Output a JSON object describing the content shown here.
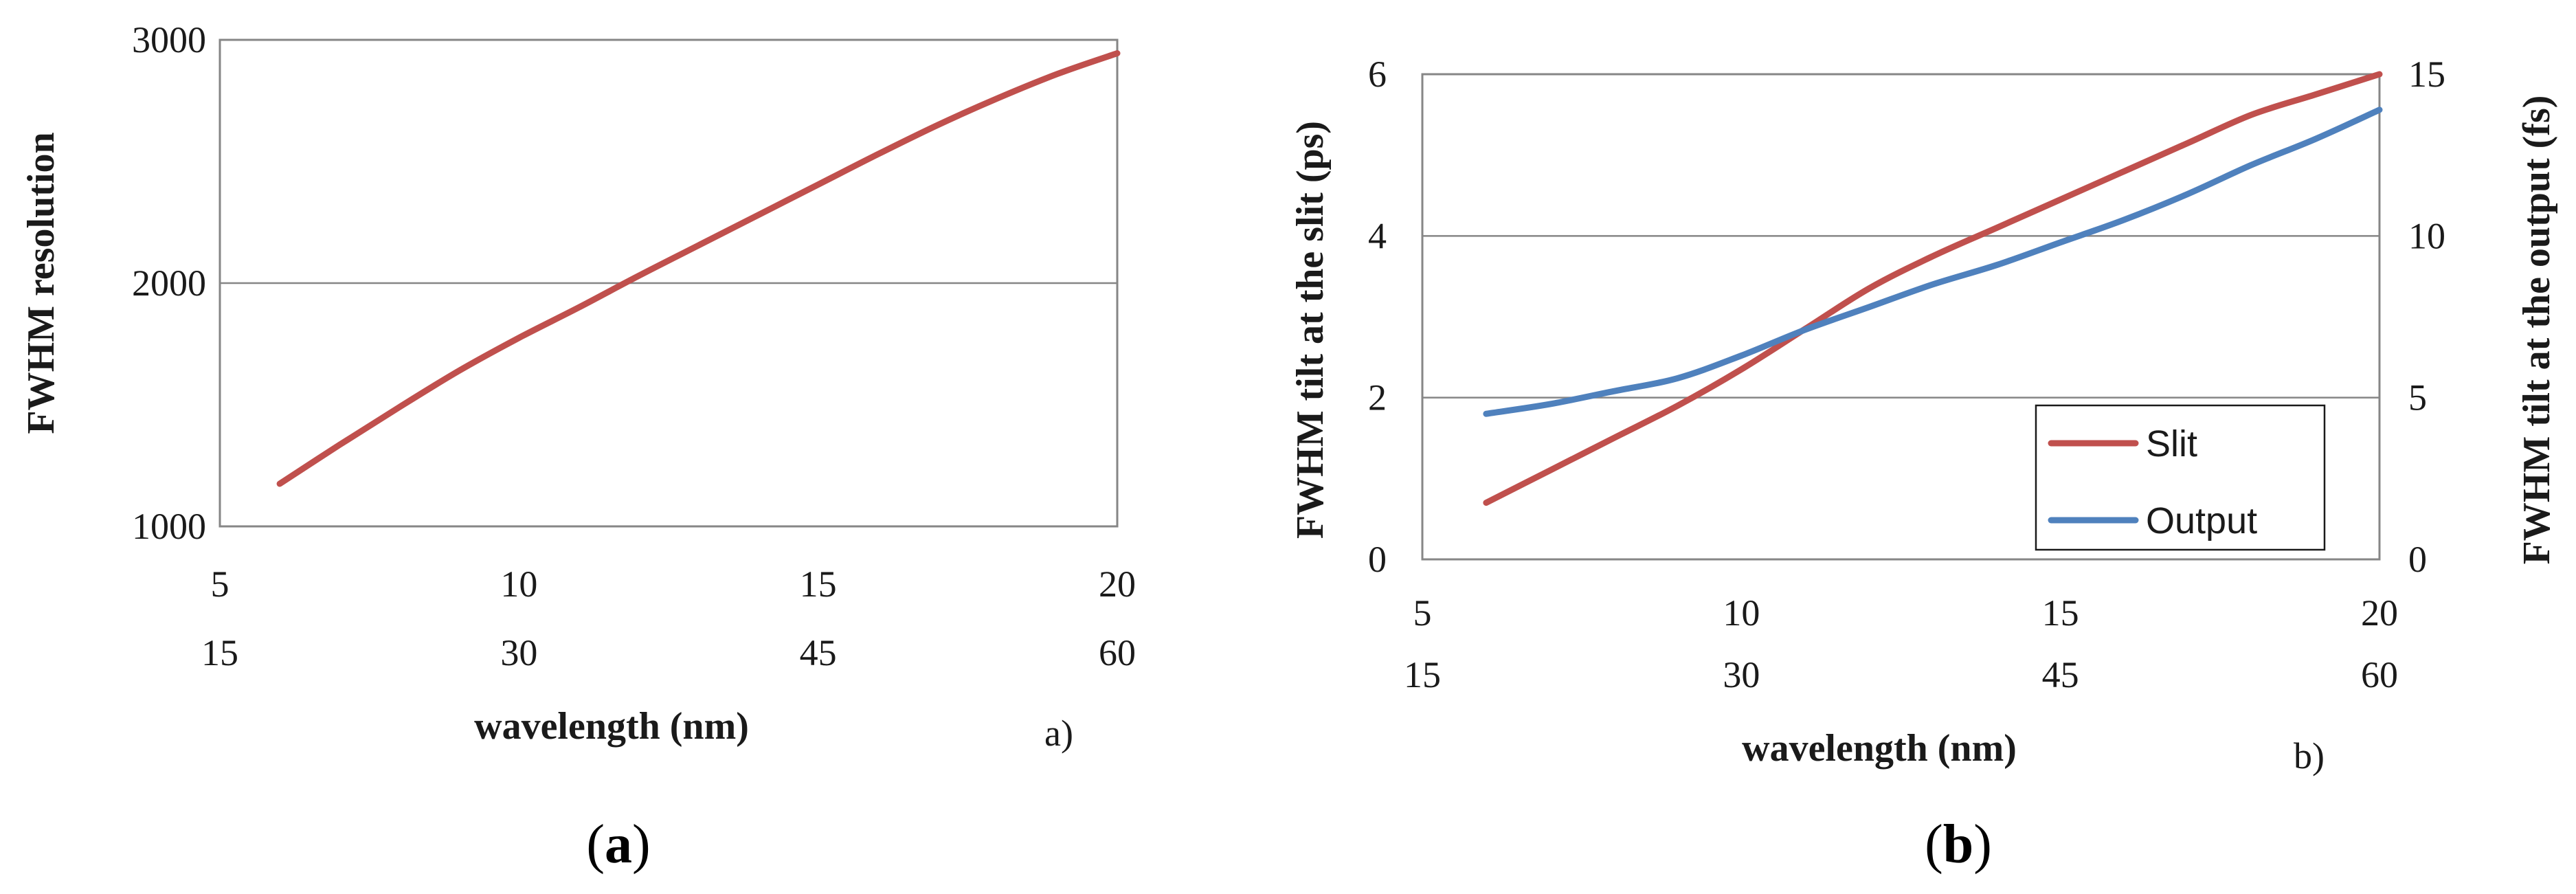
{
  "chart_data": [
    {
      "type": "line",
      "title": "",
      "xlabel": "wavelength (nm)",
      "ylabel": "FWHM  resolution",
      "x_ticks_primary": [
        "5",
        "10",
        "15",
        "20"
      ],
      "x_ticks_secondary": [
        "15",
        "30",
        "45",
        "60"
      ],
      "xlim": [
        5,
        20
      ],
      "ylim": [
        1000,
        3000
      ],
      "y_ticks": [
        "1000",
        "2000",
        "3000"
      ],
      "grid": "horizontal",
      "series": [
        {
          "color": "#c0504d",
          "x": [
            6,
            7,
            8,
            9,
            10,
            11,
            12,
            13,
            14,
            15,
            16,
            17,
            18,
            19,
            20
          ],
          "y": [
            1175,
            1335,
            1490,
            1640,
            1775,
            1900,
            2030,
            2155,
            2280,
            2405,
            2530,
            2650,
            2760,
            2860,
            2945
          ]
        }
      ],
      "annotation": "a)",
      "panel_label": "a"
    },
    {
      "type": "line",
      "title": "",
      "xlabel": "wavelength (nm)",
      "ylabel": "FWHM  tilt at the slit  (ps)",
      "y2label": "FWHM  tilt at the output  (fs)",
      "x_ticks_primary": [
        "5",
        "10",
        "15",
        "20"
      ],
      "x_ticks_secondary": [
        "15",
        "30",
        "45",
        "60"
      ],
      "xlim": [
        5,
        20
      ],
      "ylim": [
        0,
        6
      ],
      "y_ticks": [
        "0",
        "2",
        "4",
        "6"
      ],
      "y2lim": [
        0,
        15
      ],
      "y2_ticks": [
        "0",
        "5",
        "10",
        "15"
      ],
      "grid": "horizontal",
      "legend_position": "bottom-right",
      "series": [
        {
          "name": "Slit",
          "axis": "left",
          "color": "#c0504d",
          "x": [
            6,
            7,
            8,
            9,
            10,
            11,
            12,
            13,
            14,
            15,
            16,
            17,
            18,
            19,
            20
          ],
          "y": [
            0.7,
            1.1,
            1.5,
            1.9,
            2.35,
            2.85,
            3.35,
            3.75,
            4.1,
            4.45,
            4.8,
            5.15,
            5.5,
            5.75,
            6.0
          ]
        },
        {
          "name": "Output",
          "axis": "right",
          "color": "#4f81bd",
          "x": [
            6,
            7,
            8,
            9,
            10,
            11,
            12,
            13,
            14,
            15,
            16,
            17,
            18,
            19,
            20
          ],
          "y": [
            4.5,
            4.8,
            5.2,
            5.6,
            6.3,
            7.1,
            7.8,
            8.5,
            9.1,
            9.8,
            10.5,
            11.3,
            12.2,
            13.0,
            13.9
          ]
        }
      ],
      "annotation": "b)",
      "panel_label": "b"
    }
  ]
}
